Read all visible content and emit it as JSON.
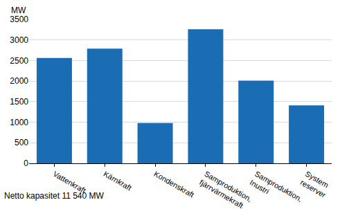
{
  "chart_data": {
    "type": "bar",
    "ylabel": "MW",
    "note": "Netto kapasitet 11 540 MW",
    "categories": [
      "Vattenkraft",
      "Kärnkraft",
      "Kondenskraft",
      "Samproduktion, fjärrvärmekraft",
      "Samproduktion, Inustri",
      "System reserver"
    ],
    "values": [
      2560,
      2790,
      980,
      3260,
      2010,
      1410
    ],
    "color": "#1a6db3",
    "ylim": [
      0,
      3500
    ],
    "yticks": [
      0,
      500,
      1000,
      1500,
      2000,
      2500,
      3000,
      3500
    ],
    "grid": true
  }
}
